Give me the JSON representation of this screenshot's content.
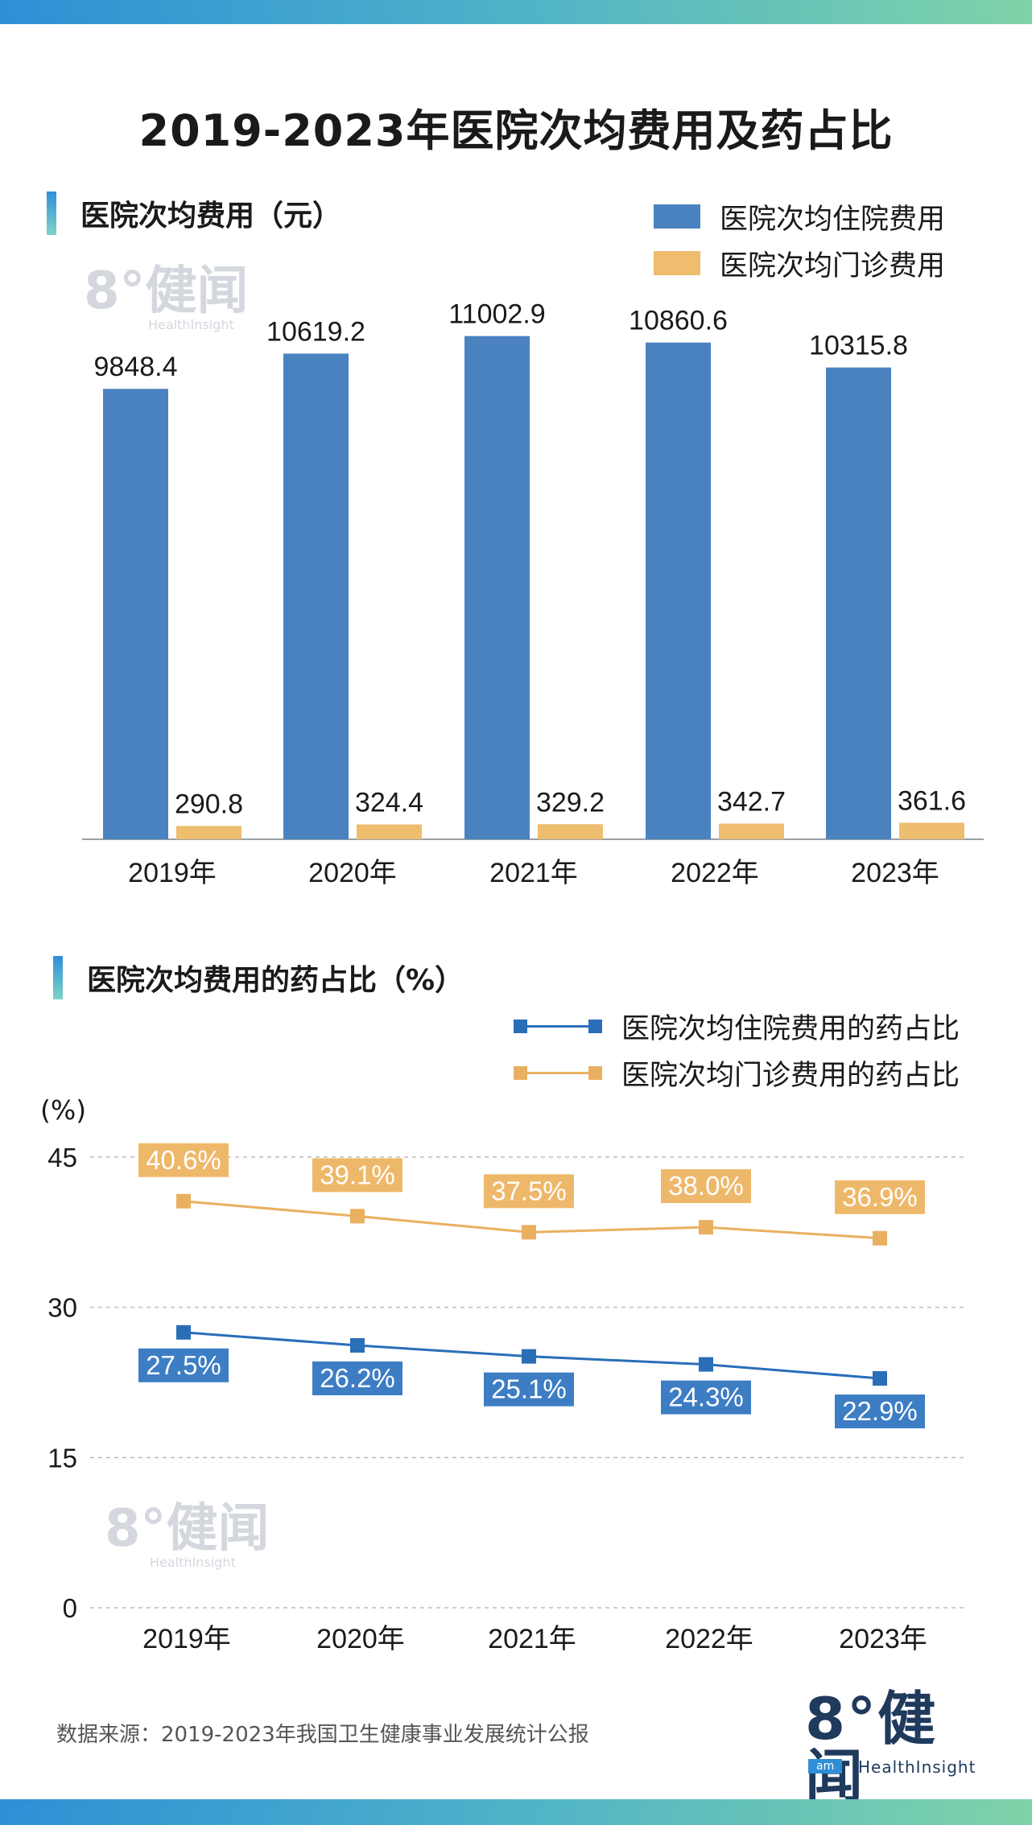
{
  "title": "2019-2023年医院次均费用及药占比",
  "colors": {
    "blue": "#4a82c0",
    "orange": "#eebd6e",
    "line_blue": "#2a6eb8",
    "line_orange": "#e9b060",
    "label_blue": "#3d7dc4",
    "label_orange": "#eeb86a"
  },
  "section1": {
    "label": "医院次均费用（元）"
  },
  "section2": {
    "label": "医院次均费用的药占比（%）"
  },
  "unit_label": "(%)",
  "watermark": {
    "big": "8°健闻",
    "small": "HealthInsight"
  },
  "source": "数据来源：2019-2023年我国卫生健康事业发展统计公报",
  "logo": {
    "big": "8°健闻",
    "badge": "am",
    "text": "HealthInsight"
  },
  "chart_data": [
    {
      "type": "bar",
      "categories": [
        "2019年",
        "2020年",
        "2021年",
        "2022年",
        "2023年"
      ],
      "series": [
        {
          "name": "医院次均住院费用",
          "values": [
            9848.4,
            10619.2,
            11002.9,
            10860.6,
            10315.8
          ],
          "labels": [
            "9848.4",
            "10619.2",
            "11002.9",
            "10860.6",
            "10315.8"
          ]
        },
        {
          "name": "医院次均门诊费用",
          "values": [
            290.8,
            324.4,
            329.2,
            342.7,
            361.6
          ],
          "labels": [
            "290.8",
            "324.4",
            "329.2",
            "342.7",
            "361.6"
          ]
        }
      ],
      "title": "医院次均费用（元）",
      "ylim": [
        0,
        11700
      ],
      "grid": false,
      "legend": "top-right"
    },
    {
      "type": "line",
      "categories": [
        "2019年",
        "2020年",
        "2021年",
        "2022年",
        "2023年"
      ],
      "series": [
        {
          "name": "医院次均住院费用的药占比",
          "values": [
            27.5,
            26.2,
            25.1,
            24.3,
            22.9
          ],
          "labels": [
            "27.5%",
            "26.2%",
            "25.1%",
            "24.3%",
            "22.9%"
          ]
        },
        {
          "name": "医院次均门诊费用的药占比",
          "values": [
            40.6,
            39.1,
            37.5,
            38.0,
            36.9
          ],
          "labels": [
            "40.6%",
            "39.1%",
            "37.5%",
            "38.0%",
            "36.9%"
          ]
        }
      ],
      "title": "医院次均费用的药占比（%）",
      "ylabel": "(%)",
      "yticks": [
        "0",
        "15",
        "30",
        "45"
      ],
      "ylim": [
        0,
        45
      ],
      "grid": true,
      "legend": "top-right"
    }
  ]
}
